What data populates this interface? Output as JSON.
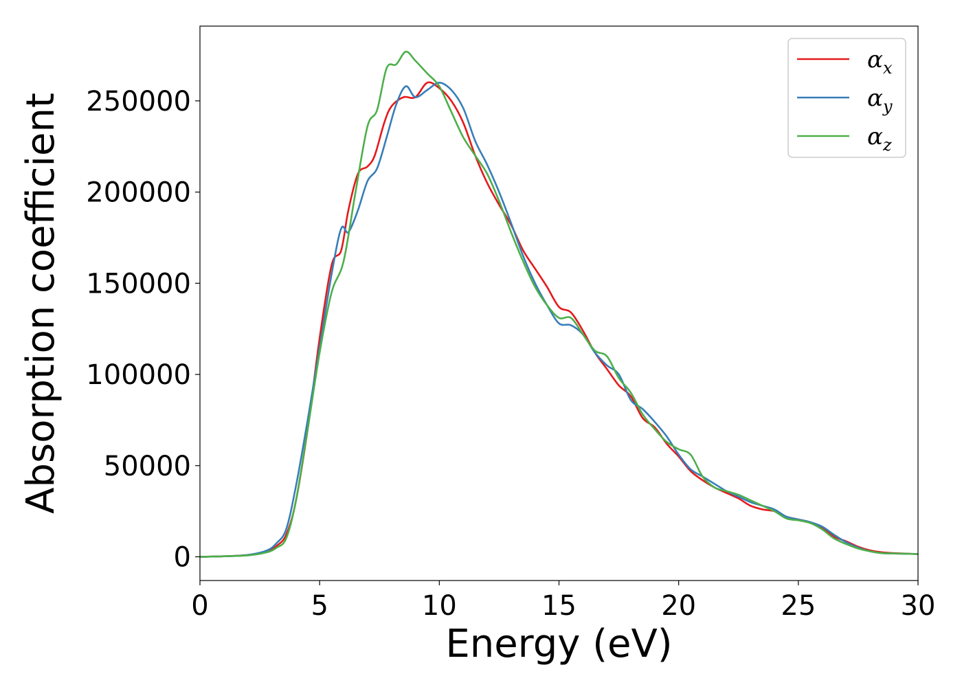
{
  "chart_data": {
    "type": "line",
    "xlabel": "Energy (eV)",
    "ylabel": "Absorption coefficient",
    "xlim": [
      0,
      30
    ],
    "ylim": [
      -13000,
      291000
    ],
    "xticks": [
      "0",
      "5",
      "10",
      "15",
      "20",
      "25",
      "30"
    ],
    "yticks": [
      "0",
      "50000",
      "100000",
      "150000",
      "200000",
      "250000"
    ],
    "grid": false,
    "legend_position": "top-right",
    "series": [
      {
        "name": "α",
        "subscript": "x",
        "color": "#e41a1c",
        "x": [
          0,
          1,
          2,
          2.8,
          3.2,
          3.6,
          4.0,
          4.5,
          5.0,
          5.5,
          5.9,
          6.2,
          6.6,
          7.0,
          7.3,
          7.7,
          8.0,
          8.5,
          9.0,
          9.5,
          10.0,
          10.5,
          11.0,
          11.5,
          12.0,
          12.5,
          13.0,
          13.5,
          14.0,
          14.5,
          15.0,
          15.5,
          16.0,
          16.5,
          17.0,
          17.5,
          18.0,
          18.5,
          19.0,
          19.5,
          20.0,
          20.5,
          21.0,
          21.5,
          22.0,
          22.5,
          23.0,
          23.5,
          24.0,
          24.5,
          25.0,
          25.5,
          26.0,
          26.5,
          27.0,
          27.5,
          28.0,
          28.5,
          29.0,
          30.0
        ],
        "y": [
          0,
          300,
          1000,
          3000,
          6000,
          12000,
          30000,
          70000,
          120000,
          160000,
          168000,
          190000,
          210000,
          214000,
          220000,
          238000,
          247000,
          252000,
          252000,
          260000,
          257000,
          250000,
          238000,
          220000,
          205000,
          193000,
          182000,
          168000,
          158000,
          148000,
          137000,
          134000,
          124000,
          112000,
          103000,
          94000,
          88000,
          76000,
          71000,
          62000,
          55000,
          47000,
          42000,
          38000,
          35000,
          32000,
          28000,
          26000,
          25000,
          22000,
          20500,
          19000,
          16000,
          11000,
          8500,
          5500,
          3500,
          2500,
          2000,
          1500
        ]
      },
      {
        "name": "α",
        "subscript": "y",
        "color": "#377eb8",
        "x": [
          0,
          1,
          2,
          2.8,
          3.2,
          3.6,
          4.0,
          4.5,
          5.0,
          5.5,
          5.9,
          6.2,
          6.6,
          7.0,
          7.4,
          7.8,
          8.2,
          8.6,
          9.0,
          9.5,
          10.0,
          10.5,
          11.0,
          11.5,
          12.0,
          12.5,
          13.0,
          13.5,
          14.0,
          14.5,
          15.0,
          15.5,
          16.0,
          16.5,
          17.0,
          17.5,
          18.0,
          18.5,
          19.0,
          19.5,
          20.0,
          20.5,
          21.0,
          21.5,
          22.0,
          22.5,
          23.0,
          23.5,
          24.0,
          24.5,
          25.0,
          25.5,
          26.0,
          26.5,
          27.0,
          27.5,
          28.0,
          28.5,
          29.0,
          30.0
        ],
        "y": [
          0,
          300,
          1000,
          3500,
          7500,
          15000,
          38000,
          75000,
          115000,
          155000,
          180000,
          178000,
          190000,
          206000,
          213000,
          230000,
          248000,
          258000,
          252000,
          256000,
          260000,
          256000,
          246000,
          228000,
          215000,
          200000,
          183000,
          165000,
          150000,
          138000,
          128000,
          127000,
          122000,
          112000,
          105000,
          100000,
          86000,
          81000,
          74000,
          66000,
          56000,
          48000,
          44000,
          40000,
          36000,
          33000,
          30000,
          28000,
          26000,
          22000,
          20500,
          19000,
          16500,
          12000,
          8000,
          5000,
          3000,
          2000,
          1800,
          1500
        ]
      },
      {
        "name": "α",
        "subscript": "z",
        "color": "#4daf4a",
        "x": [
          0,
          1,
          2,
          2.8,
          3.2,
          3.6,
          4.0,
          4.5,
          5.0,
          5.5,
          6.0,
          6.5,
          7.0,
          7.4,
          7.8,
          8.2,
          8.6,
          9.0,
          9.5,
          10.0,
          10.5,
          11.0,
          11.5,
          12.0,
          12.5,
          13.0,
          13.5,
          14.0,
          14.5,
          15.0,
          15.5,
          16.0,
          16.5,
          17.0,
          17.5,
          18.0,
          18.5,
          19.0,
          19.5,
          20.0,
          20.5,
          21.0,
          21.5,
          22.0,
          22.5,
          23.0,
          23.5,
          24.0,
          24.5,
          25.0,
          25.5,
          26.0,
          26.5,
          27.0,
          27.5,
          28.0,
          28.5,
          29.0,
          30.0
        ],
        "y": [
          0,
          300,
          800,
          2500,
          5000,
          10000,
          30000,
          70000,
          112000,
          145000,
          162000,
          200000,
          236000,
          245000,
          268000,
          270000,
          277000,
          272000,
          265000,
          258000,
          244000,
          230000,
          220000,
          210000,
          195000,
          178000,
          162000,
          148000,
          138000,
          131000,
          131000,
          122000,
          113000,
          110000,
          98000,
          90000,
          78000,
          70000,
          63000,
          59000,
          56000,
          44000,
          38000,
          36000,
          34000,
          31000,
          28000,
          25000,
          21000,
          20000,
          18500,
          15000,
          10000,
          7000,
          4500,
          3000,
          2000,
          1800,
          1500
        ]
      }
    ]
  }
}
